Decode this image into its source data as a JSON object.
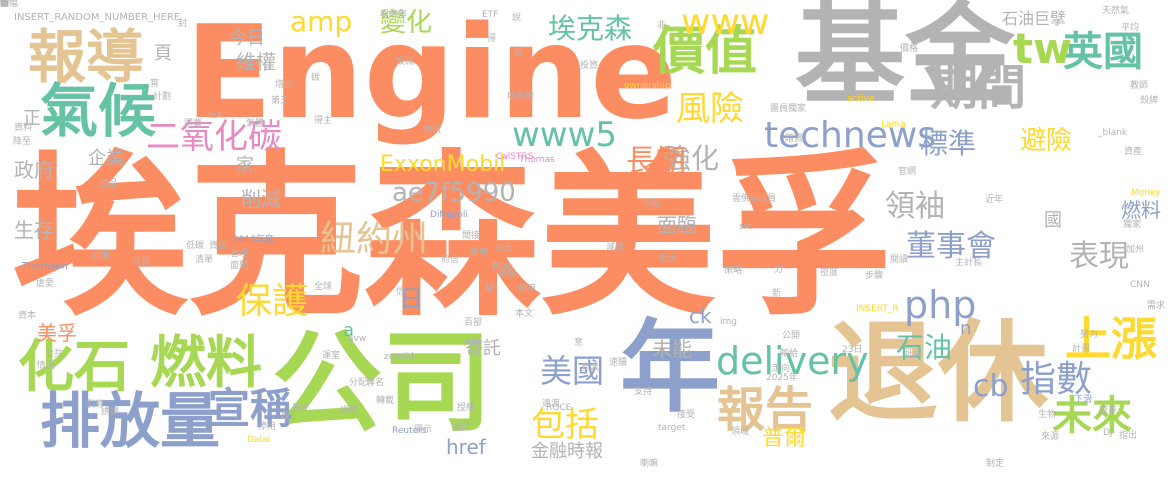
{
  "words": [
    {
      "text": "埃克森美孚",
      "color": "#fc8d62"
    },
    {
      "text": "Engine",
      "color": "#fc8d62"
    },
    {
      "text": "基金",
      "color": "#b3b3b3"
    },
    {
      "text": "公司",
      "color": "#a6d854"
    },
    {
      "text": "退休",
      "color": "#e5c494"
    },
    {
      "text": "年",
      "color": "#8da0cb"
    },
    {
      "text": "報導",
      "color": "#e5c494"
    },
    {
      "text": "氣候",
      "color": "#66c2a5"
    },
    {
      "text": "價值",
      "color": "#a6d854"
    },
    {
      "text": "期間",
      "color": "#b3b3b3"
    },
    {
      "text": "英國",
      "color": "#66c2a5"
    },
    {
      "text": "tw",
      "color": "#a6d854"
    },
    {
      "text": "www",
      "color": "#ffd92f"
    },
    {
      "text": "technews",
      "color": "#8da0cb"
    },
    {
      "text": "www5",
      "color": "#66c2a5"
    },
    {
      "text": "二氧化碳",
      "color": "#e78ac3"
    },
    {
      "text": "風險",
      "color": "#ffd92f"
    },
    {
      "text": "化石",
      "color": "#a6d854"
    },
    {
      "text": "燃料",
      "color": "#a6d854"
    },
    {
      "text": "排放量",
      "color": "#8da0cb"
    },
    {
      "text": "宣稱",
      "color": "#8da0cb"
    },
    {
      "text": "紐約州",
      "color": "#e5c494"
    },
    {
      "text": "上漲",
      "color": "#ffd92f"
    },
    {
      "text": "指數",
      "color": "#8da0cb"
    },
    {
      "text": "cb",
      "color": "#8da0cb"
    },
    {
      "text": "報告",
      "color": "#e5c494"
    },
    {
      "text": "未來",
      "color": "#a6d854"
    },
    {
      "text": "保護",
      "color": "#ffd92f"
    },
    {
      "text": "php",
      "color": "#8da0cb"
    },
    {
      "text": "delivery",
      "color": "#66c2a5"
    },
    {
      "text": "美國",
      "color": "#8da0cb"
    },
    {
      "text": "包括",
      "color": "#ffd92f"
    },
    {
      "text": "表現",
      "color": "#b3b3b3"
    },
    {
      "text": "董事會",
      "color": "#8da0cb"
    },
    {
      "text": "領袖",
      "color": "#b3b3b3"
    },
    {
      "text": "石油",
      "color": "#66c2a5"
    },
    {
      "text": "標準",
      "color": "#8da0cb"
    },
    {
      "text": "避險",
      "color": "#ffd92f"
    },
    {
      "text": "強化",
      "color": "#b3b3b3"
    },
    {
      "text": "長期",
      "color": "#fc8d62"
    },
    {
      "text": "埃克森",
      "color": "#66c2a5"
    },
    {
      "text": "變化",
      "color": "#a6d854"
    },
    {
      "text": "amp",
      "color": "#ffd92f"
    },
    {
      "text": "ExxonMobil",
      "color": "#ffd92f"
    },
    {
      "text": "ae7f5990",
      "color": "#b3b3b3"
    },
    {
      "text": "今日",
      "color": "#b3b3b3"
    },
    {
      "text": "維權",
      "color": "#b3b3b3"
    },
    {
      "text": "企業",
      "color": "#b3b3b3"
    },
    {
      "text": "削減",
      "color": "#b3b3b3"
    },
    {
      "text": "生存",
      "color": "#b3b3b3"
    },
    {
      "text": "政府",
      "color": "#b3b3b3"
    },
    {
      "text": "美孚",
      "color": "#fc8d62"
    },
    {
      "text": "日",
      "color": "#8da0cb"
    },
    {
      "text": "寄託",
      "color": "#b3b3b3"
    },
    {
      "text": "未能",
      "color": "#b3b3b3"
    },
    {
      "text": "普爾",
      "color": "#ffd92f"
    },
    {
      "text": "金融時報",
      "color": "#b3b3b3"
    },
    {
      "text": "href",
      "color": "#8da0cb"
    },
    {
      "text": "石油巨擘",
      "color": "#b3b3b3"
    },
    {
      "text": "燃料",
      "color": "#8da0cb"
    },
    {
      "text": "面臨",
      "color": "#b3b3b3"
    },
    {
      "text": "ck",
      "color": "#8da0cb"
    },
    {
      "text": "a",
      "color": "#66c2a5"
    },
    {
      "text": "n",
      "color": "#8da0cb"
    },
    {
      "text": "家",
      "color": "#b3b3b3"
    },
    {
      "text": "頁",
      "color": "#b3b3b3"
    },
    {
      "text": "正",
      "color": "#b3b3b3"
    },
    {
      "text": "國",
      "color": "#b3b3b3"
    },
    {
      "text": "INSERT_RANDOM_NUMBER_HERE",
      "color": "#b3b3b3"
    },
    {
      "text": "ETF",
      "color": "#b3b3b3"
    },
    {
      "text": "報酬率",
      "color": "#b3b3b3"
    },
    {
      "text": "CalSTRS",
      "color": "#e78ac3"
    },
    {
      "text": "Thomas",
      "color": "#e78ac3"
    },
    {
      "text": "DiNapoli",
      "color": "#8da0cb"
    },
    {
      "text": "Reuters",
      "color": "#8da0cb"
    },
    {
      "text": "Thomson",
      "color": "#8da0cb"
    },
    {
      "text": "Money",
      "color": "#ffd92f"
    },
    {
      "text": "Lama",
      "color": "#ffd92f"
    },
    {
      "text": "active",
      "color": "#ffd92f"
    },
    {
      "text": "ownership",
      "color": "#ffd92f"
    },
    {
      "text": "_blank",
      "color": "#b3b3b3"
    },
    {
      "text": "ROCE",
      "color": "#b3b3b3"
    },
    {
      "text": "zoneid",
      "color": "#b3b3b3"
    },
    {
      "text": "avw",
      "color": "#b3b3b3"
    },
    {
      "text": "img",
      "color": "#b3b3b3"
    },
    {
      "text": "src",
      "color": "#b3b3b3"
    },
    {
      "text": "INSERT_R",
      "color": "#ffd92f"
    },
    {
      "text": "IEA",
      "color": "#b3b3b3"
    },
    {
      "text": "DJ",
      "color": "#b3b3b3"
    },
    {
      "text": "Dalai",
      "color": "#ffd92f"
    },
    {
      "text": "target",
      "color": "#b3b3b3"
    },
    {
      "text": "CNN",
      "color": "#b3b3b3"
    },
    {
      "text": "2010年度",
      "color": "#8da0cb"
    },
    {
      "text": "2025年",
      "color": "#b3b3b3"
    },
    {
      "text": "23日",
      "color": "#b3b3b3"
    },
    {
      "text": "天然氣",
      "color": "#b3b3b3"
    },
    {
      "text": "平均",
      "color": "#b3b3b3"
    },
    {
      "text": "教師",
      "color": "#b3b3b3"
    },
    {
      "text": "殼牌",
      "color": "#b3b3b3"
    },
    {
      "text": "資產",
      "color": "#b3b3b3"
    },
    {
      "text": "獨家",
      "color": "#b3b3b3"
    },
    {
      "text": "加州",
      "color": "#b3b3b3"
    },
    {
      "text": "計畫",
      "color": "#b3b3b3"
    },
    {
      "text": "下滑",
      "color": "#8da0cb"
    },
    {
      "text": "指出",
      "color": "#b3b3b3"
    },
    {
      "text": "來源",
      "color": "#b3b3b3"
    },
    {
      "text": "全球",
      "color": "#b3b3b3"
    },
    {
      "text": "分配",
      "color": "#b3b3b3"
    },
    {
      "text": "顯示",
      "color": "#b3b3b3"
    },
    {
      "text": "停用",
      "color": "#b3b3b3"
    },
    {
      "text": "美元",
      "color": "#b3b3b3"
    },
    {
      "text": "調整",
      "color": "#b3b3b3"
    },
    {
      "text": "轉載",
      "color": "#b3b3b3"
    },
    {
      "text": "授權",
      "color": "#b3b3b3"
    },
    {
      "text": "捕捉",
      "color": "#b3b3b3"
    },
    {
      "text": "接受",
      "color": "#b3b3b3"
    },
    {
      "text": "支持",
      "color": "#b3b3b3"
    },
    {
      "text": "速贖",
      "color": "#b3b3b3"
    },
    {
      "text": "產業",
      "color": "#b3b3b3"
    },
    {
      "text": "輸給",
      "color": "#b3b3b3"
    },
    {
      "text": "走向",
      "color": "#b3b3b3"
    },
    {
      "text": "公開",
      "color": "#b3b3b3"
    },
    {
      "text": "批評",
      "color": "#b3b3b3"
    },
    {
      "text": "努力",
      "color": "#b3b3b3"
    },
    {
      "text": "生物",
      "color": "#b3b3b3"
    },
    {
      "text": "資本",
      "color": "#b3b3b3"
    },
    {
      "text": "情況",
      "color": "#b3b3b3"
    },
    {
      "text": "公共",
      "color": "#b3b3b3"
    },
    {
      "text": "引導",
      "color": "#b3b3b3"
    },
    {
      "text": "虐愛",
      "color": "#b3b3b3"
    },
    {
      "text": "改善",
      "color": "#b3b3b3"
    },
    {
      "text": "清單",
      "color": "#b3b3b3"
    },
    {
      "text": "面對",
      "color": "#b3b3b3"
    },
    {
      "text": "管理",
      "color": "#b3b3b3"
    },
    {
      "text": "資金",
      "color": "#b3b3b3"
    },
    {
      "text": "低碳",
      "color": "#b3b3b3"
    },
    {
      "text": "新聞",
      "color": "#b3b3b3"
    },
    {
      "text": "產品",
      "color": "#b3b3b3"
    },
    {
      "text": "資料",
      "color": "#b3b3b3"
    },
    {
      "text": "降至",
      "color": "#b3b3b3"
    },
    {
      "text": "計劃",
      "color": "#b3b3b3"
    },
    {
      "text": "同業",
      "color": "#b3b3b3"
    },
    {
      "text": "氣體",
      "color": "#b3b3b3"
    },
    {
      "text": "增加",
      "color": "#b3b3b3"
    },
    {
      "text": "第三",
      "color": "#b3b3b3"
    },
    {
      "text": "得主",
      "color": "#b3b3b3"
    },
    {
      "text": "智訊",
      "color": "#b3b3b3"
    },
    {
      "text": "所有權",
      "color": "#b3b3b3"
    },
    {
      "text": "投資",
      "color": "#b3b3b3"
    },
    {
      "text": "參與",
      "color": "#b3b3b3"
    },
    {
      "text": "鎖頭",
      "color": "#b3b3b3"
    },
    {
      "text": "投票",
      "color": "#b3b3b3"
    },
    {
      "text": "延伸",
      "color": "#b3b3b3"
    },
    {
      "text": "間接",
      "color": "#b3b3b3"
    },
    {
      "text": "系統",
      "color": "#b3b3b3"
    },
    {
      "text": "雲佛羅",
      "color": "#b3b3b3"
    },
    {
      "text": "成員",
      "color": "#b3b3b3"
    },
    {
      "text": "主計長",
      "color": "#b3b3b3"
    },
    {
      "text": "近年",
      "color": "#b3b3b3"
    },
    {
      "text": "官網",
      "color": "#b3b3b3"
    },
    {
      "text": "團員獨家",
      "color": "#b3b3b3"
    },
    {
      "text": "價格",
      "color": "#b3b3b3"
    },
    {
      "text": "制定",
      "color": "#b3b3b3"
    },
    {
      "text": "喇嘛",
      "color": "#b3b3b3"
    },
    {
      "text": "變革",
      "color": "#b3b3b3"
    },
    {
      "text": "贈賣",
      "color": "#b3b3b3"
    },
    {
      "text": "密度",
      "color": "#b3b3b3"
    },
    {
      "text": "總",
      "color": "#b3b3b3"
    },
    {
      "text": "賴嘛",
      "color": "#b3b3b3"
    },
    {
      "text": "意",
      "color": "#b3b3b3"
    },
    {
      "text": "遠渡",
      "color": "#b3b3b3"
    },
    {
      "text": "策略",
      "color": "#b3b3b3"
    },
    {
      "text": "力",
      "color": "#b3b3b3"
    },
    {
      "text": "閱讀",
      "color": "#b3b3b3"
    },
    {
      "text": "步驟",
      "color": "#b3b3b3"
    },
    {
      "text": "減排",
      "color": "#b3b3b3"
    },
    {
      "text": "府信",
      "color": "#b3b3b3"
    },
    {
      "text": "段",
      "color": "#b3b3b3"
    },
    {
      "text": "運室",
      "color": "#b3b3b3"
    },
    {
      "text": "聯名",
      "color": "#b3b3b3"
    },
    {
      "text": "信",
      "color": "#b3b3b3"
    },
    {
      "text": "百部",
      "color": "#b3b3b3"
    },
    {
      "text": "大幅",
      "color": "#b3b3b3"
    },
    {
      "text": "本文",
      "color": "#b3b3b3"
    },
    {
      "text": "需求",
      "color": "#b3b3b3"
    },
    {
      "text": "碳",
      "color": "#b3b3b3"
    },
    {
      "text": "設減",
      "color": "#b3b3b3"
    },
    {
      "text": "得",
      "color": "#b3b3b3"
    },
    {
      "text": "非",
      "color": "#b3b3b3"
    },
    {
      "text": "說",
      "color": "#b3b3b3"
    },
    {
      "text": "封",
      "color": "#b3b3b3"
    },
    {
      "text": "提出",
      "color": "#b3b3b3"
    },
    {
      "text": "領域",
      "color": "#b3b3b3"
    },
    {
      "text": "誘請",
      "color": "#b3b3b3"
    },
    {
      "text": "宵",
      "color": "#b3b3b3"
    },
    {
      "text": "留",
      "color": "#b3b3b3"
    },
    {
      "text": "新",
      "color": "#b3b3b3"
    },
    {
      "text": "給",
      "color": "#b3b3b3"
    },
    {
      "text": "收",
      "color": "#b3b3b3"
    },
    {
      "text": "領",
      "color": "#b3b3b3"
    },
    {
      "text": "提",
      "color": "#b3b3b3"
    },
    {
      "text": "傳幅",
      "color": "#b3b3b3"
    }
  ]
}
